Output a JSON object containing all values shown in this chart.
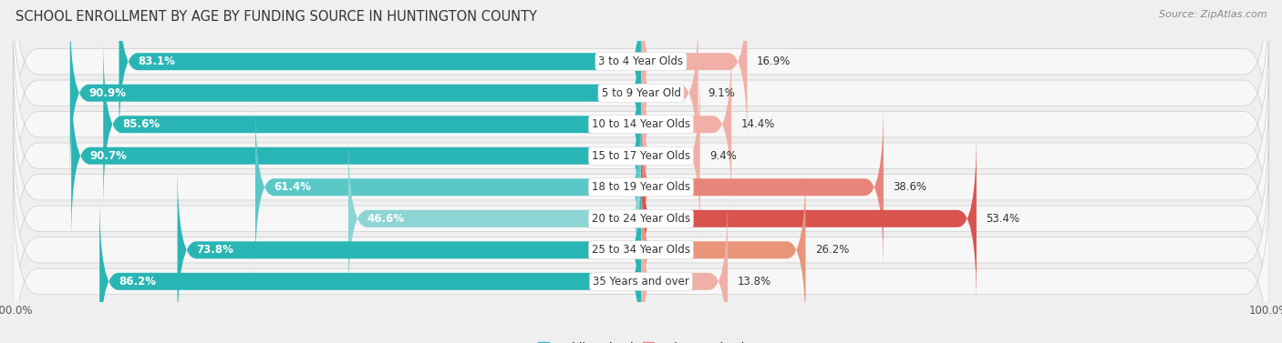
{
  "title": "SCHOOL ENROLLMENT BY AGE BY FUNDING SOURCE IN HUNTINGTON COUNTY",
  "source": "Source: ZipAtlas.com",
  "categories": [
    "3 to 4 Year Olds",
    "5 to 9 Year Old",
    "10 to 14 Year Olds",
    "15 to 17 Year Olds",
    "18 to 19 Year Olds",
    "20 to 24 Year Olds",
    "25 to 34 Year Olds",
    "35 Years and over"
  ],
  "public_values": [
    83.1,
    90.9,
    85.6,
    90.7,
    61.4,
    46.6,
    73.8,
    86.2
  ],
  "private_values": [
    16.9,
    9.1,
    14.4,
    9.4,
    38.6,
    53.4,
    26.2,
    13.8
  ],
  "public_colors": [
    "#2ab5b5",
    "#2ab5b5",
    "#2ab5b5",
    "#2ab5b5",
    "#5bc8c8",
    "#8dd4d4",
    "#2ab5b5",
    "#2ab5b5"
  ],
  "private_colors": [
    "#f0b0a8",
    "#f0b0a8",
    "#f0b0a8",
    "#f0b0a8",
    "#e8857a",
    "#d9534f",
    "#e8957a",
    "#f0b0a8"
  ],
  "bg_color": "#efefef",
  "row_bg_color": "#e4e4e4",
  "row_inner_color": "#f7f7f7",
  "title_fontsize": 10.5,
  "label_fontsize": 8.5,
  "tick_fontsize": 8.5,
  "source_fontsize": 8
}
